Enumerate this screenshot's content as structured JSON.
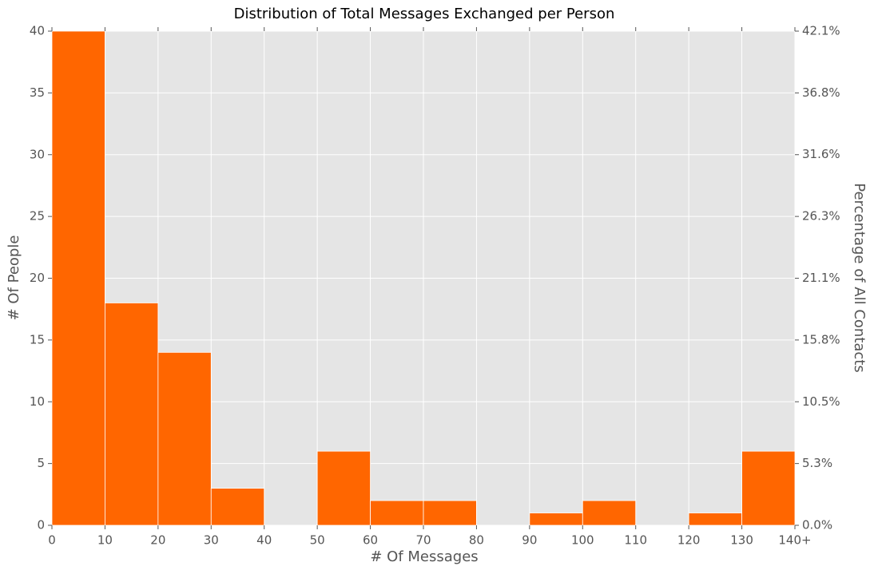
{
  "chart_data": {
    "type": "histogram",
    "title": "Distribution of Total Messages Exchanged per Person",
    "xlabel": "# Of Messages",
    "ylabel": "# Of People",
    "y2label": "Percentage of All Contacts",
    "bins": [
      0,
      10,
      20,
      30,
      40,
      50,
      60,
      70,
      80,
      90,
      100,
      110,
      120,
      130,
      140
    ],
    "values": [
      40,
      18,
      14,
      3,
      0,
      6,
      2,
      2,
      0,
      1,
      2,
      0,
      1,
      6
    ],
    "color": "#ff6600",
    "xlim": [
      0,
      140
    ],
    "ylim": [
      0,
      40
    ],
    "y2lim": [
      0,
      42.105
    ],
    "xticks": [
      0,
      10,
      20,
      30,
      40,
      50,
      60,
      70,
      80,
      90,
      100,
      110,
      120,
      130,
      {
        "value": 140,
        "label": "140+"
      }
    ],
    "yticks": [
      0,
      5,
      10,
      15,
      20,
      25,
      30,
      35,
      40
    ],
    "y2ticks": [
      {
        "value": 0,
        "label": "0.0%"
      },
      {
        "value": 5.263,
        "label": "5.3%"
      },
      {
        "value": 10.526,
        "label": "10.5%"
      },
      {
        "value": 15.789,
        "label": "15.8%"
      },
      {
        "value": 21.053,
        "label": "21.1%"
      },
      {
        "value": 26.316,
        "label": "26.3%"
      },
      {
        "value": 31.579,
        "label": "31.6%"
      },
      {
        "value": 36.842,
        "label": "36.8%"
      },
      {
        "value": 42.105,
        "label": "42.1%"
      }
    ],
    "grid": true
  }
}
